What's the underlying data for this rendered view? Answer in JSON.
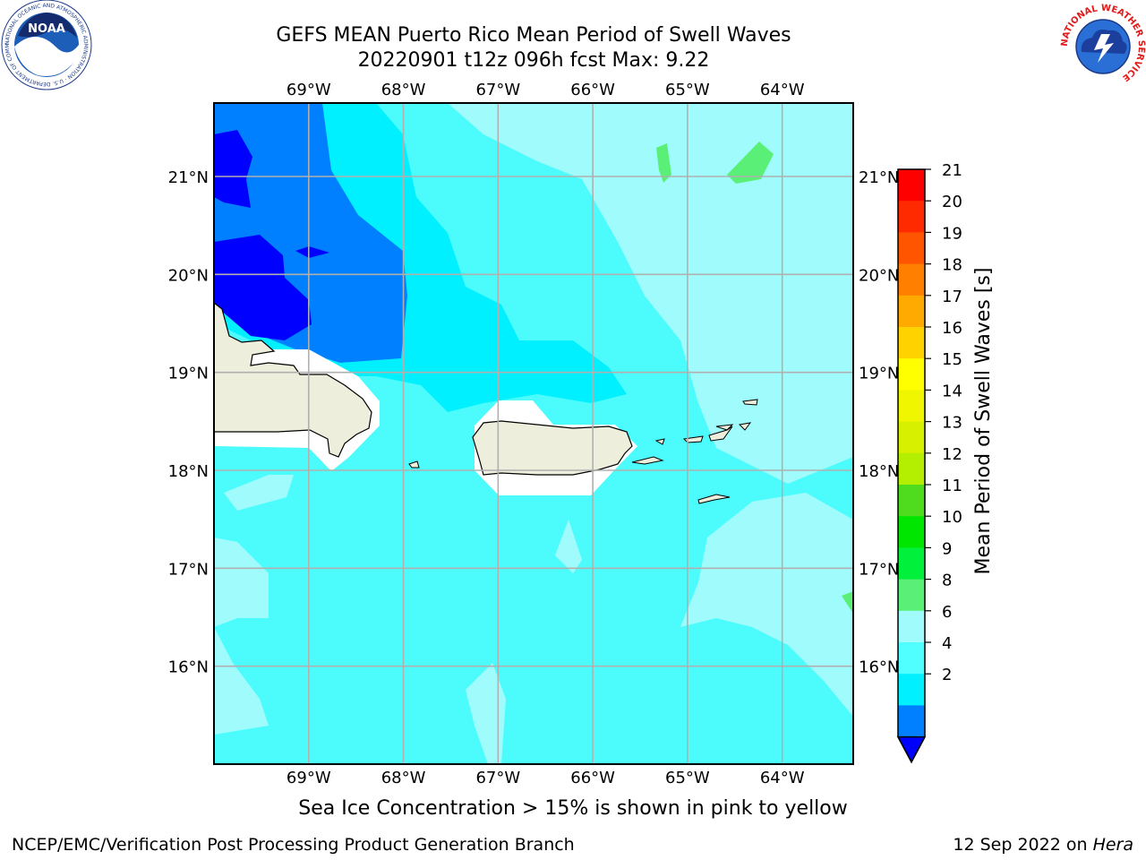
{
  "title": {
    "line1": "GEFS MEAN Puerto Rico Mean Period of Swell Waves",
    "line2": "20220901 t12z 096h fcst   Max: 9.22"
  },
  "map": {
    "lon_labels": [
      "69°W",
      "68°W",
      "67°W",
      "66°W",
      "65°W",
      "64°W"
    ],
    "lat_labels": [
      "21°N",
      "20°N",
      "19°N",
      "18°N",
      "17°N",
      "16°N"
    ],
    "lon_range": [
      -70.0,
      -63.25
    ],
    "lat_range": [
      15.0,
      21.75
    ]
  },
  "colorbar": {
    "label": "Mean Period of Swell Waves [s]",
    "ticks": [
      "21",
      "20",
      "19",
      "18",
      "17",
      "16",
      "15",
      "14",
      "13",
      "12",
      "11",
      "10",
      "9",
      "8",
      "6",
      "4",
      "2"
    ],
    "colors": [
      "#ff0000",
      "#ff2a00",
      "#ff5500",
      "#ff8000",
      "#ffaa00",
      "#ffd200",
      "#ffff00",
      "#f0f500",
      "#d7f000",
      "#b4ee00",
      "#50dc1e",
      "#00e600",
      "#00f03c",
      "#5af078",
      "#a0fcfc",
      "#50ffff",
      "#00f0ff",
      "#0080ff"
    ],
    "extend_color": "#0000ff"
  },
  "logos": {
    "noaa_text": "NOAA",
    "noaa_ring": "NATIONAL OCEANIC AND ATMOSPHERIC ADMINISTRATION · U.S. DEPARTMENT OF COMMERCE",
    "nws_ring": "NATIONAL WEATHER SERVICE"
  },
  "note": "Sea Ice Concentration > 15% is shown in pink to yellow",
  "footer": {
    "left": "NCEP/EMC/Verification Post Processing Product Generation Branch",
    "date": "12 Sep 2022 on ",
    "host": "Hera"
  },
  "palette": {
    "sea_dark": "#0000ff",
    "sea_blue": "#0080ff",
    "sea_cyan": "#00f0ff",
    "sea_mid": "#4cfcfc",
    "sea_light": "#a0fcfc",
    "sea_green": "#5af078",
    "land": "#eeeedc"
  }
}
